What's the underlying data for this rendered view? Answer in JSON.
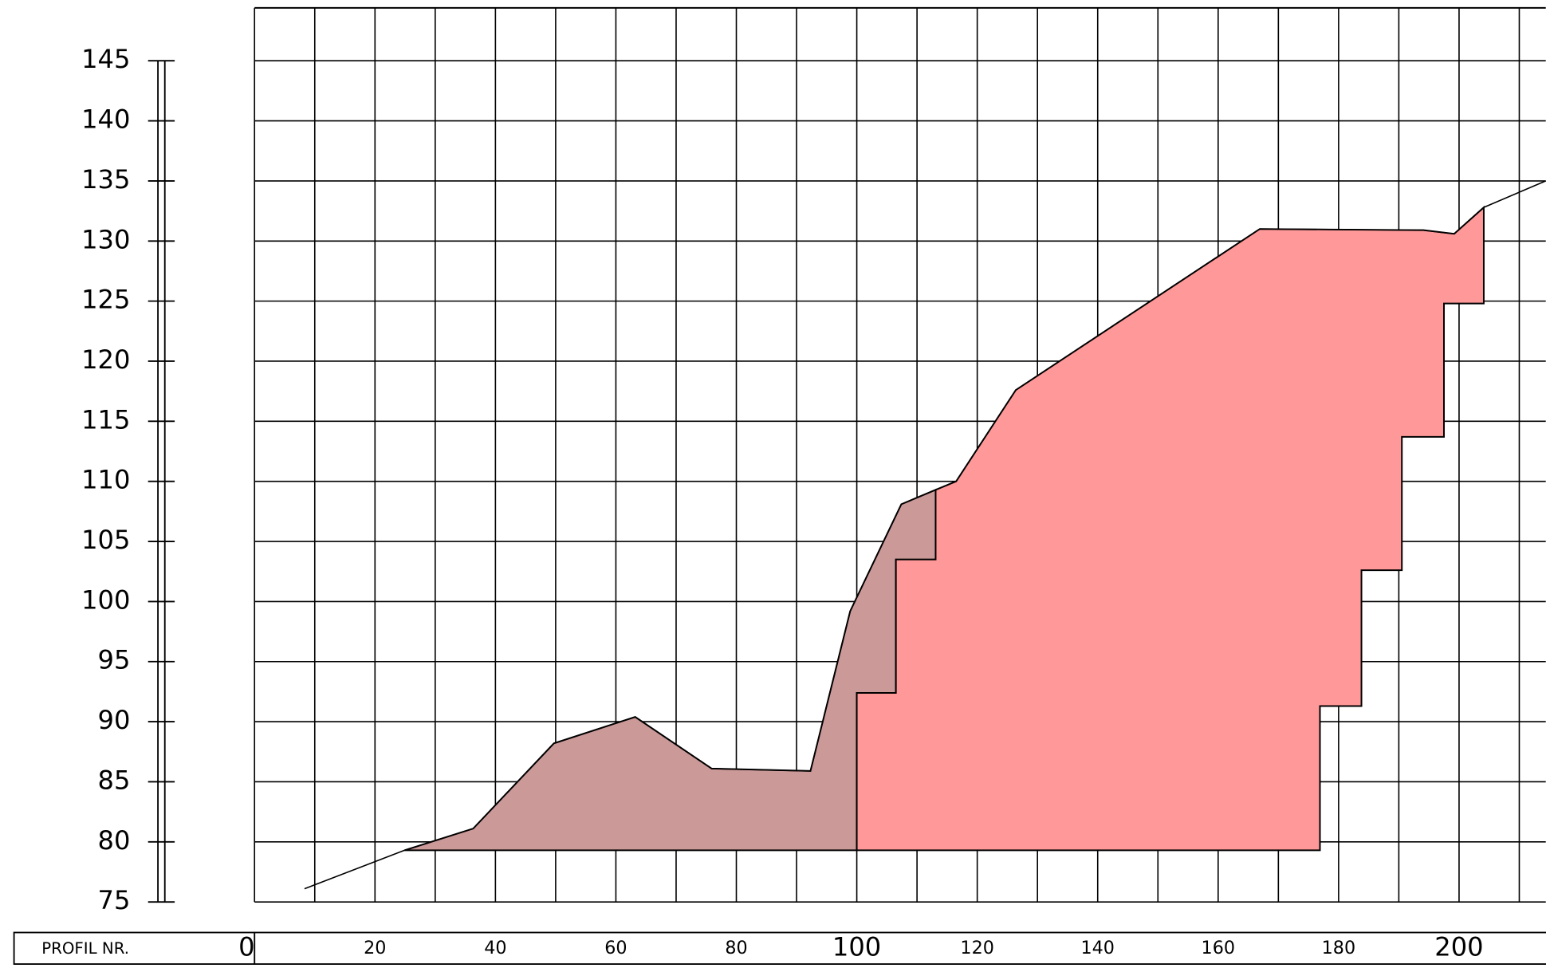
{
  "chart_data": {
    "type": "area",
    "x_axis_label": "PROFIL NR.",
    "xlim": [
      0,
      214.4
    ],
    "ylim": [
      75,
      149.4
    ],
    "xticks": [
      0,
      20,
      40,
      60,
      80,
      100,
      120,
      140,
      160,
      180,
      200
    ],
    "yticks": [
      75,
      80,
      85,
      90,
      95,
      100,
      105,
      110,
      115,
      120,
      125,
      130,
      135,
      140,
      145
    ],
    "xgrid": [
      0,
      10,
      20,
      30,
      40,
      50,
      60,
      70,
      80,
      90,
      100,
      110,
      120,
      130,
      140,
      150,
      160,
      170,
      180,
      190,
      200,
      210
    ],
    "grid": true,
    "areas": [
      {
        "color": "#cc9999",
        "x": [
          24.9,
          36.3,
          49.7,
          63.2,
          75.9,
          92.3,
          98.9,
          107.4,
          113.1,
          113.1,
          106.5,
          106.5,
          100,
          100
        ],
        "y": [
          79.3,
          81.1,
          88.2,
          90.4,
          86.1,
          85.9,
          99.2,
          108.1,
          109.3,
          103.5,
          103.5,
          92.4,
          92.4,
          79.3
        ]
      },
      {
        "color": "#ff9999",
        "x": [
          100,
          100,
          106.5,
          106.5,
          113.1,
          113.1,
          116.5,
          126.4,
          166.9,
          194.1,
          199.2,
          204.1,
          204.1,
          197.5,
          197.5,
          190.5,
          190.5,
          183.8,
          183.8,
          176.9,
          176.9
        ],
        "y": [
          79.3,
          92.4,
          92.4,
          103.5,
          103.5,
          109.3,
          110.0,
          117.6,
          131.0,
          130.9,
          130.6,
          132.8,
          124.8,
          124.8,
          113.7,
          113.7,
          102.6,
          102.6,
          91.3,
          91.3,
          79.3
        ]
      }
    ],
    "line": {
      "color": "#000000",
      "x": [
        8.3,
        24.9,
        36.3,
        49.7,
        63.2,
        75.9,
        92.3,
        98.9,
        107.4,
        116.5,
        126.4,
        166.9,
        194.1,
        199.2,
        204.1,
        214.4
      ],
      "y": [
        76.1,
        79.3,
        81.1,
        88.2,
        90.4,
        86.1,
        85.9,
        99.2,
        108.1,
        110.0,
        117.6,
        131.0,
        130.9,
        130.6,
        132.8,
        135.0
      ]
    }
  }
}
